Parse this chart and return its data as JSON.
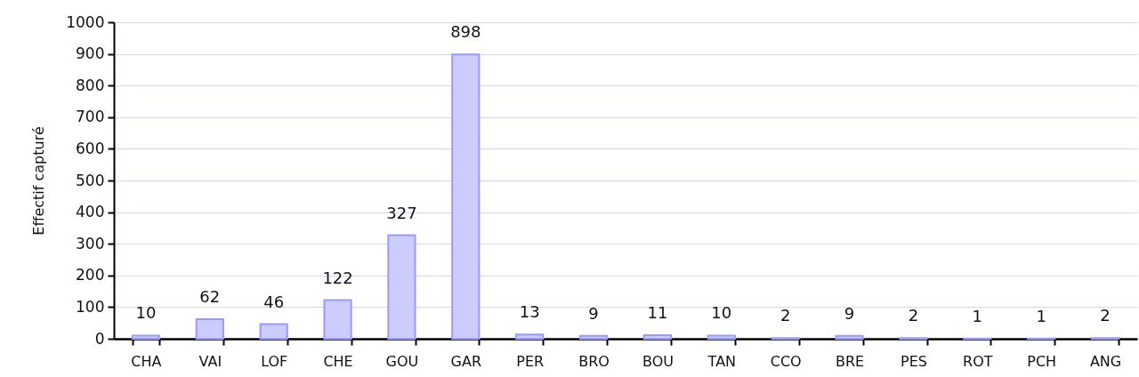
{
  "chart_data": {
    "type": "bar",
    "ylabel": "Effectif capturé",
    "categories": [
      "CHA",
      "VAI",
      "LOF",
      "CHE",
      "GOU",
      "GAR",
      "PER",
      "BRO",
      "BOU",
      "TAN",
      "CCO",
      "BRE",
      "PES",
      "ROT",
      "PCH",
      "ANG"
    ],
    "values": [
      10,
      62,
      46,
      122,
      327,
      898,
      13,
      9,
      11,
      10,
      2,
      9,
      2,
      1,
      1,
      2
    ],
    "color": "#ccccff",
    "ylim": [
      0,
      1000
    ],
    "yticks": [
      0,
      100,
      200,
      300,
      400,
      500,
      600,
      700,
      800,
      900,
      1000
    ],
    "grid": "y",
    "data_labels": true
  }
}
